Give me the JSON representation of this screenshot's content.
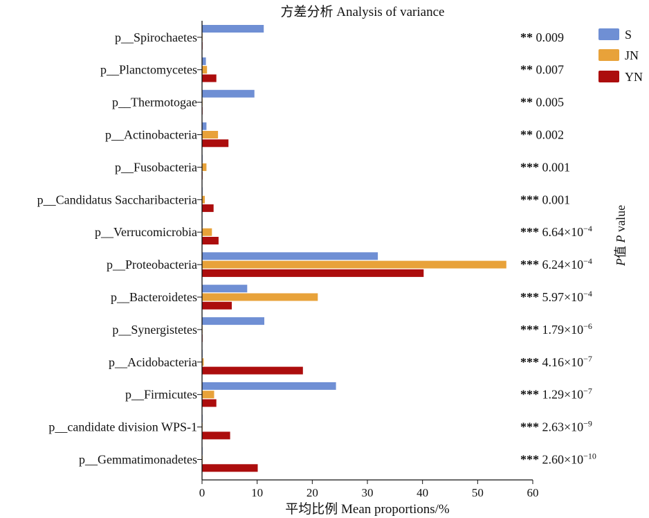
{
  "chart_data": {
    "type": "bar",
    "orientation": "horizontal",
    "title": "方差分析 Analysis of variance",
    "xlabel": "平均比例 Mean proportions/%",
    "right_axis_label": "P值 P value",
    "xlim": [
      0,
      60
    ],
    "xticks": [
      "0",
      "10",
      "20",
      "30",
      "40",
      "50",
      "60"
    ],
    "legend_position": "top-right",
    "categories": [
      "p__Spirochaetes",
      "p__Planctomycetes",
      "p__Thermotogae",
      "p__Actinobacteria",
      "p__Fusobacteria",
      "p__Candidatus Saccharibacteria",
      "p__Verrucomicrobia",
      "p__Proteobacteria",
      "p__Bacteroidetes",
      "p__Synergistetes",
      "p__Acidobacteria",
      "p__Firmicutes",
      "p__candidate division WPS-1",
      "p__Gemmatimonadetes"
    ],
    "series": [
      {
        "name": "S",
        "color": "#6f8fd4",
        "values": [
          11.2,
          0.7,
          9.5,
          0.8,
          0.1,
          0.1,
          0.1,
          31.9,
          8.2,
          11.3,
          0.1,
          24.3,
          0.1,
          0.1
        ]
      },
      {
        "name": "JN",
        "color": "#e8a23a",
        "values": [
          0.1,
          0.9,
          0.1,
          2.9,
          0.8,
          0.5,
          1.8,
          55.2,
          21.0,
          0.1,
          0.3,
          2.2,
          0.1,
          0.1
        ]
      },
      {
        "name": "YN",
        "color": "#ac0d0d",
        "values": [
          0.1,
          2.6,
          0.1,
          4.8,
          0.1,
          2.1,
          3.0,
          40.2,
          5.4,
          0.1,
          18.3,
          2.6,
          5.1,
          10.1
        ]
      }
    ],
    "p_values": [
      {
        "stars": "**",
        "value": "0.009",
        "exp": ""
      },
      {
        "stars": "**",
        "value": "0.007",
        "exp": ""
      },
      {
        "stars": "**",
        "value": "0.005",
        "exp": ""
      },
      {
        "stars": "**",
        "value": "0.002",
        "exp": ""
      },
      {
        "stars": "***",
        "value": "0.001",
        "exp": ""
      },
      {
        "stars": "***",
        "value": "0.001",
        "exp": ""
      },
      {
        "stars": "***",
        "value": "6.64×10",
        "exp": "−4"
      },
      {
        "stars": "***",
        "value": "6.24×10",
        "exp": "−4"
      },
      {
        "stars": "***",
        "value": "5.97×10",
        "exp": "−4"
      },
      {
        "stars": "***",
        "value": "1.79×10",
        "exp": "−6"
      },
      {
        "stars": "***",
        "value": "4.16×10",
        "exp": "−7"
      },
      {
        "stars": "***",
        "value": "1.29×10",
        "exp": "−7"
      },
      {
        "stars": "***",
        "value": "2.63×10",
        "exp": "−9"
      },
      {
        "stars": "***",
        "value": "2.60×10",
        "exp": "−10"
      }
    ]
  }
}
